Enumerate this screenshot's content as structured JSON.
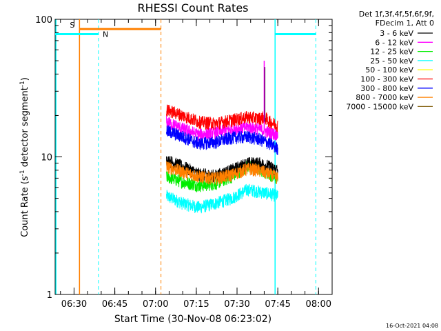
{
  "chart_data": {
    "type": "line",
    "title": "RHESSI Count Rates",
    "xlabel": "Start Time (30-Nov-08 06:23:02)",
    "ylabel": "Count Rate (s",
    "ylabel_sup": "-1",
    "ylabel_rest": " detector segment",
    "ylabel_end": ")",
    "y_scale": "log",
    "ylim": [
      1,
      100
    ],
    "y_ticks": [
      {
        "v": 1,
        "label": "1"
      },
      {
        "v": 10,
        "label": "10"
      },
      {
        "v": 100,
        "label": "100"
      }
    ],
    "xlim": [
      "06:23:02",
      "08:05:00"
    ],
    "x_ticks": [
      "06:30",
      "06:45",
      "07:00",
      "07:15",
      "07:30",
      "07:45",
      "08:00"
    ],
    "legend_header": [
      "Det 1f,3f,4f,5f,6f,9f,",
      "FDecim 1, Att 0"
    ],
    "series": [
      {
        "name": "3 - 6 keV",
        "color": "#000000",
        "x": [
          "07:04",
          "07:10",
          "07:16",
          "07:22",
          "07:28",
          "07:34",
          "07:38",
          "07:42",
          "07:45"
        ],
        "values": [
          9.5,
          8.5,
          7.5,
          7.3,
          8.0,
          9.0,
          9.0,
          8.5,
          8.0
        ]
      },
      {
        "name": "6 - 12 keV",
        "color": "#ff00ff",
        "x": [
          "07:04",
          "07:10",
          "07:16",
          "07:22",
          "07:28",
          "07:34",
          "07:38",
          "07:42",
          "07:45"
        ],
        "values": [
          18.0,
          16.0,
          14.5,
          15.0,
          16.0,
          16.5,
          16.0,
          15.0,
          14.5
        ]
      },
      {
        "name": "12 - 25 keV",
        "color": "#00ee00",
        "x": [
          "07:04",
          "07:10",
          "07:16",
          "07:22",
          "07:28",
          "07:34",
          "07:38",
          "07:42",
          "07:45"
        ],
        "values": [
          7.2,
          6.6,
          6.2,
          6.4,
          7.2,
          8.6,
          8.2,
          7.5,
          7.0
        ]
      },
      {
        "name": "25 - 50 keV",
        "color": "#00ffff",
        "x": [
          "07:04",
          "07:10",
          "07:16",
          "07:22",
          "07:28",
          "07:34",
          "07:38",
          "07:42",
          "07:45"
        ],
        "values": [
          5.2,
          4.6,
          4.3,
          4.6,
          5.0,
          5.8,
          5.6,
          5.4,
          5.2
        ]
      },
      {
        "name": "50 - 100 keV",
        "color": "#ffff00",
        "x": [],
        "values": []
      },
      {
        "name": "100 - 300 keV",
        "color": "#ff0000",
        "x": [
          "07:04",
          "07:10",
          "07:16",
          "07:22",
          "07:28",
          "07:34",
          "07:38",
          "07:40",
          "07:42",
          "07:45"
        ],
        "values": [
          22.0,
          20.0,
          18.0,
          17.5,
          18.5,
          19.5,
          19.0,
          19.5,
          18.0,
          17.0
        ]
      },
      {
        "name": "300 - 800 keV",
        "color": "#0000ff",
        "x": [
          "07:04",
          "07:10",
          "07:16",
          "07:22",
          "07:28",
          "07:34",
          "07:38",
          "07:42",
          "07:45"
        ],
        "values": [
          15.5,
          14.0,
          12.5,
          12.8,
          13.8,
          14.0,
          13.5,
          12.5,
          11.5
        ]
      },
      {
        "name": "800 - 7000 keV",
        "color": "#ff8000",
        "x": [
          "07:04",
          "07:10",
          "07:16",
          "07:22",
          "07:28",
          "07:34",
          "07:38",
          "07:42",
          "07:45"
        ],
        "values": [
          8.5,
          7.8,
          7.2,
          7.0,
          7.4,
          8.2,
          8.0,
          7.5,
          7.0
        ]
      },
      {
        "name": "7000 - 15000 keV",
        "color": "#8b6a1e",
        "x": [],
        "values": []
      }
    ],
    "spike": {
      "x": "07:40",
      "peak": 50,
      "series": "3 - 6 keV"
    },
    "markers": {
      "attenuator_bar": {
        "label": "S",
        "color": "#ff8000",
        "x_start": "06:32",
        "x_end": "07:02",
        "value": 85
      },
      "night_bars": [
        {
          "label": "N",
          "color": "#00ffff",
          "x_start": "06:23:02",
          "x_end": "06:39",
          "value": 78
        },
        {
          "label": "",
          "color": "#00ffff",
          "x_start": "07:44",
          "x_end": "07:59",
          "value": 78
        }
      ],
      "solid_lines": [
        {
          "x": "06:23:20",
          "color": "#00ffff"
        },
        {
          "x": "06:32",
          "color": "#ff8000"
        },
        {
          "x": "07:44",
          "color": "#00ffff"
        }
      ],
      "dashed_lines": [
        {
          "x": "06:39",
          "color": "#00ffff"
        },
        {
          "x": "07:02",
          "color": "#ff8000"
        },
        {
          "x": "07:59",
          "color": "#00ffff"
        }
      ]
    },
    "timestamp": "16-Oct-2021 04:08"
  }
}
